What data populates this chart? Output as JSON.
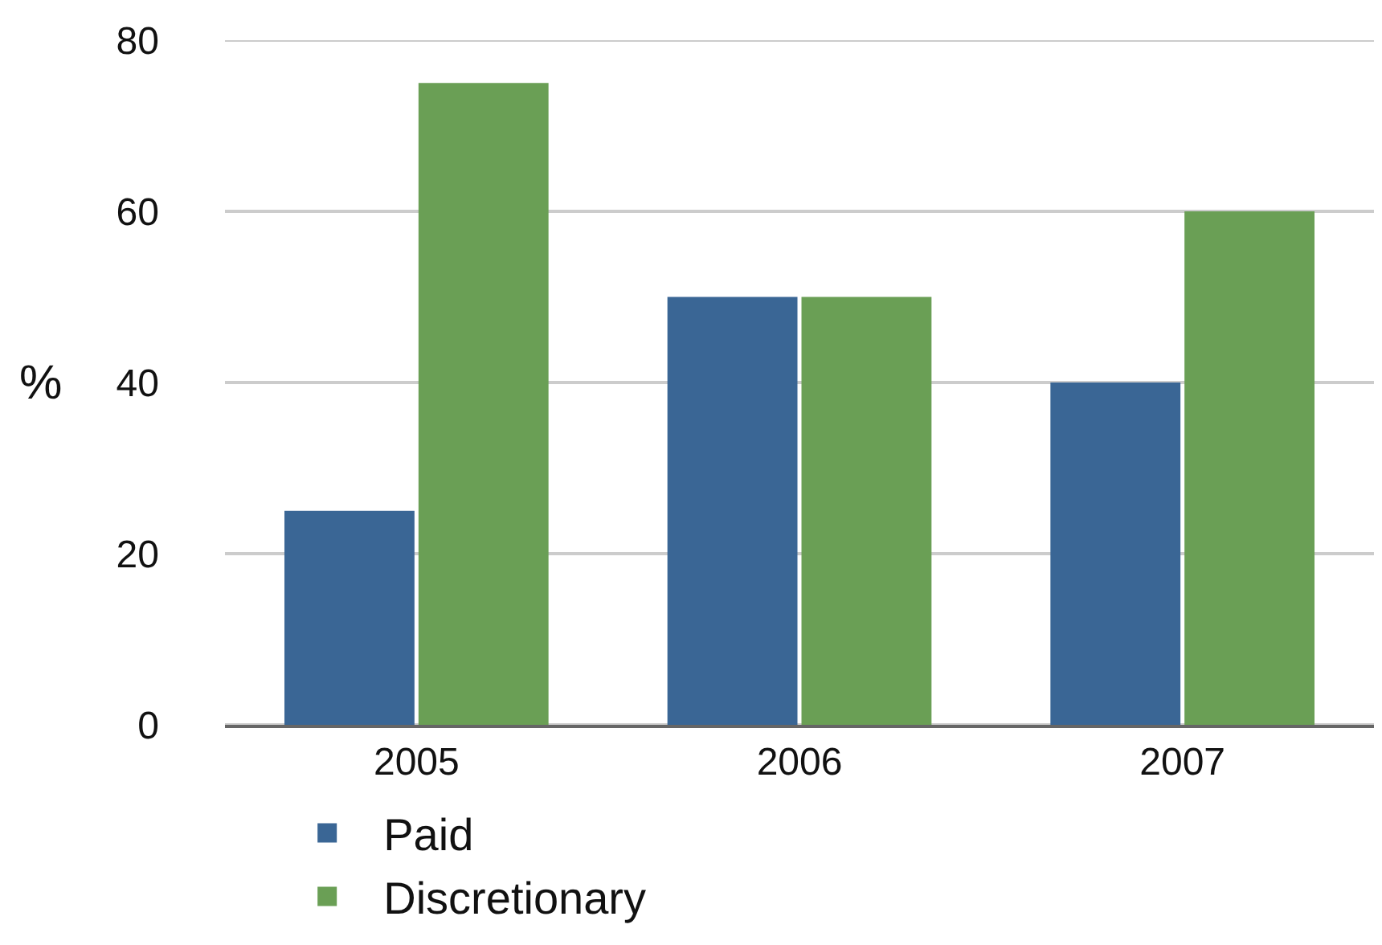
{
  "chart_data": {
    "type": "bar",
    "ylabel": "%",
    "categories": [
      "2005",
      "2006",
      "2007"
    ],
    "series": [
      {
        "name": "Paid",
        "color": "#3a6695",
        "values": [
          25,
          50,
          40
        ]
      },
      {
        "name": "Discretionary",
        "color": "#6a9f55",
        "values": [
          75,
          50,
          60
        ]
      }
    ],
    "ylim": [
      0,
      80
    ],
    "yticks": [
      0,
      20,
      40,
      60,
      80
    ],
    "grid": "y",
    "legend": "bottom"
  }
}
